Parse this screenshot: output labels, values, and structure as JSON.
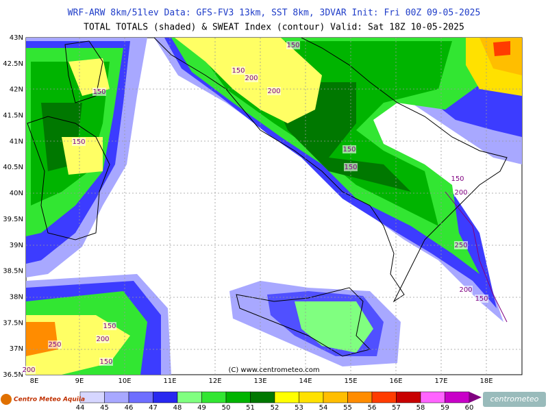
{
  "header": {
    "line1": "WRF-ARW 8km/51lev  Data: GFS-FV3 13km, SST 8km, 3DVAR  Init: Fri 00Z 09-05-2025",
    "line2": "TOTAL TOTALS (shaded) & SWEAT Index (contour)  Valid: Sat 18Z 10-05-2025"
  },
  "map": {
    "lat_labels": [
      "43N",
      "42.5N",
      "42N",
      "41.5N",
      "41N",
      "40.5N",
      "40N",
      "39.5N",
      "39N",
      "38.5N",
      "38N",
      "37.5N",
      "37N",
      "36.5N"
    ],
    "lon_labels": [
      "8E",
      "9E",
      "10E",
      "11E",
      "12E",
      "13E",
      "14E",
      "15E",
      "16E",
      "17E",
      "18E"
    ],
    "contour_labels": [
      "150",
      "150",
      "200",
      "200",
      "150",
      "150",
      "150",
      "150",
      "150",
      "200",
      "250",
      "200",
      "150",
      "150",
      "200",
      "250",
      "150",
      "200"
    ],
    "copyright": "(C) www.centrometeo.com"
  },
  "colorbar": {
    "labels": [
      "44",
      "45",
      "46",
      "47",
      "48",
      "49",
      "50",
      "51",
      "52",
      "53",
      "54",
      "55",
      "56",
      "57",
      "58",
      "59",
      "60"
    ],
    "colors": [
      "#d6d6ff",
      "#a8a8ff",
      "#6e6eff",
      "#2828f0",
      "#80ff80",
      "#32e632",
      "#00b400",
      "#007800",
      "#ffff00",
      "#ffe100",
      "#ffbe00",
      "#ff8c00",
      "#ff3c00",
      "#c80000",
      "#ff64ff",
      "#c800c8"
    ]
  },
  "footer": {
    "left_logo": "Centro Meteo Aquila",
    "right_logo": "centrometeo"
  }
}
